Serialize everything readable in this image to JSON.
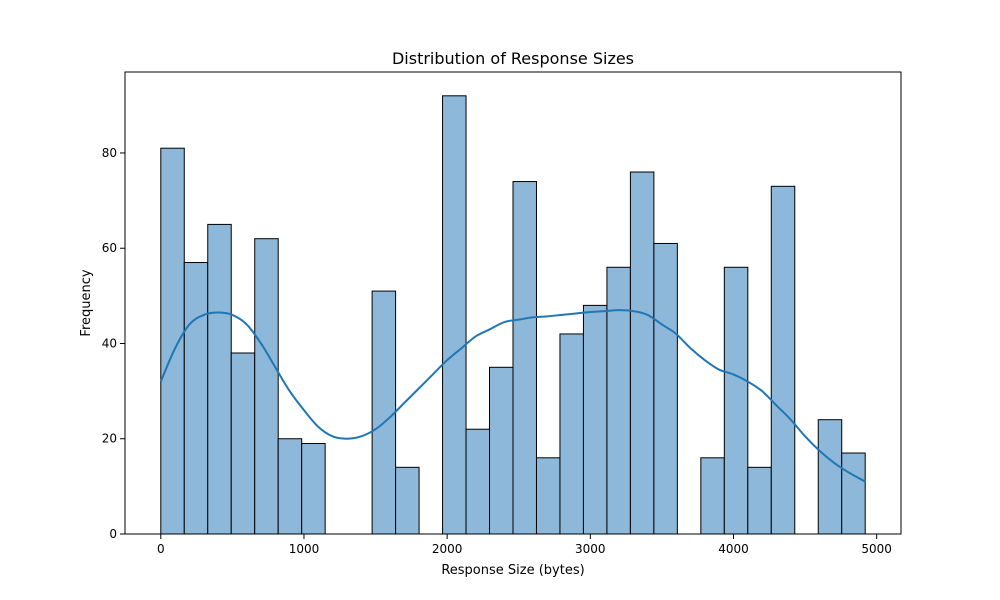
{
  "chart_data": {
    "type": "bar",
    "title": "Distribution of Response Sizes",
    "xlabel": "Response Size (bytes)",
    "ylabel": "Frequency",
    "xlim": [
      -250,
      5170
    ],
    "ylim": [
      0,
      97
    ],
    "xticks": [
      0,
      1000,
      2000,
      3000,
      4000,
      5000
    ],
    "yticks": [
      0,
      20,
      40,
      60,
      80
    ],
    "bin_width": 164,
    "bins": [
      {
        "start": 0,
        "value": 81
      },
      {
        "start": 164,
        "value": 57
      },
      {
        "start": 328,
        "value": 65
      },
      {
        "start": 492,
        "value": 38
      },
      {
        "start": 656,
        "value": 62
      },
      {
        "start": 820,
        "value": 20
      },
      {
        "start": 984,
        "value": 19
      },
      {
        "start": 1148,
        "value": 0
      },
      {
        "start": 1312,
        "value": 0
      },
      {
        "start": 1476,
        "value": 51
      },
      {
        "start": 1640,
        "value": 14
      },
      {
        "start": 1804,
        "value": 0
      },
      {
        "start": 1968,
        "value": 92
      },
      {
        "start": 2132,
        "value": 22
      },
      {
        "start": 2296,
        "value": 35
      },
      {
        "start": 2460,
        "value": 74
      },
      {
        "start": 2624,
        "value": 16
      },
      {
        "start": 2788,
        "value": 42
      },
      {
        "start": 2952,
        "value": 48
      },
      {
        "start": 3116,
        "value": 56
      },
      {
        "start": 3280,
        "value": 76
      },
      {
        "start": 3444,
        "value": 61
      },
      {
        "start": 3608,
        "value": 0
      },
      {
        "start": 3772,
        "value": 16
      },
      {
        "start": 3936,
        "value": 56
      },
      {
        "start": 4100,
        "value": 14
      },
      {
        "start": 4264,
        "value": 73
      },
      {
        "start": 4428,
        "value": 0
      },
      {
        "start": 4592,
        "value": 24
      },
      {
        "start": 4756,
        "value": 17
      }
    ],
    "kde": {
      "x": [
        0,
        100,
        200,
        300,
        400,
        500,
        600,
        700,
        800,
        900,
        1000,
        1100,
        1200,
        1300,
        1400,
        1500,
        1600,
        1700,
        1800,
        1900,
        2000,
        2100,
        2200,
        2300,
        2400,
        2500,
        2600,
        2700,
        2800,
        2900,
        3000,
        3100,
        3200,
        3300,
        3400,
        3500,
        3600,
        3700,
        3800,
        3900,
        4000,
        4100,
        4200,
        4300,
        4400,
        4500,
        4600,
        4700,
        4800,
        4920
      ],
      "y": [
        32,
        39,
        44,
        46,
        46.5,
        46,
        44,
        40,
        35,
        30,
        26,
        22.5,
        20.5,
        20,
        20.5,
        22,
        24.5,
        27.5,
        30.5,
        33.5,
        36.5,
        39,
        41.5,
        43,
        44.5,
        45,
        45.5,
        45.7,
        46,
        46.3,
        46.6,
        46.8,
        47,
        46.8,
        46,
        44,
        42,
        39,
        36.5,
        34.5,
        33.5,
        32,
        30,
        27,
        24,
        20.5,
        17.5,
        15,
        13,
        11
      ]
    },
    "colors": {
      "bar_fill": "#8db8da",
      "bar_edge": "#000000",
      "kde_line": "#1f77b4"
    },
    "grid": false,
    "legend": "none"
  }
}
